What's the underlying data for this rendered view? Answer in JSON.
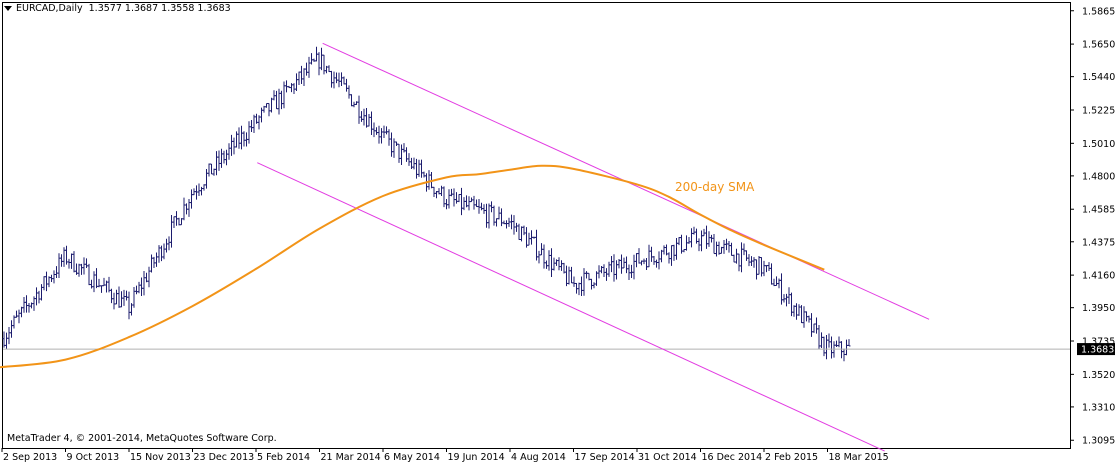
{
  "header": {
    "symbol_timeframe": "EURCAD,Daily",
    "ohlc": "1.3577 1.3687 1.3558 1.3683"
  },
  "footer": {
    "copyright": "MetaTrader 4, © 2001-2014, MetaQuotes Software Corp."
  },
  "annotation": {
    "sma_label": "200-day SMA"
  },
  "colors": {
    "background": "#ffffff",
    "frame": "#000000",
    "bars": "#1c1c6e",
    "sma": "#f29418",
    "channel": "#e23ce2",
    "price_line": "#b0b0b0",
    "price_tag_bg": "#000000",
    "price_tag_fg": "#ffffff"
  },
  "chart_data": {
    "type": "ohlc",
    "title": "EURCAD,Daily",
    "x_ticks": [
      "2 Sep 2013",
      "9 Oct 2013",
      "15 Nov 2013",
      "23 Dec 2013",
      "5 Feb 2014",
      "21 Mar 2014",
      "6 May 2014",
      "19 Jun 2014",
      "4 Aug 2014",
      "17 Sep 2014",
      "31 Oct 2014",
      "16 Dec 2014",
      "2 Feb 2015",
      "18 Mar 2015"
    ],
    "y_ticks": [
      1.5865,
      1.565,
      1.544,
      1.5225,
      1.501,
      1.48,
      1.4585,
      1.4375,
      1.416,
      1.395,
      1.3735,
      1.352,
      1.331,
      1.3095
    ],
    "ylim": [
      1.3045,
      1.5915
    ],
    "current_price": 1.3683,
    "price_path": {
      "x_ticks": [
        0,
        1,
        2,
        3,
        4,
        5,
        6,
        7,
        8,
        9,
        10,
        11,
        12,
        13,
        13.36
      ],
      "close": [
        1.375,
        1.428,
        1.395,
        1.47,
        1.515,
        1.555,
        1.505,
        1.465,
        1.45,
        1.41,
        1.425,
        1.44,
        1.42,
        1.368,
        1.3683
      ]
    },
    "sma_200": {
      "name": "200-day SMA",
      "x_ticks": [
        -0.05,
        1.0,
        2.0,
        3.0,
        4.0,
        5.0,
        6.0,
        7.0,
        7.5,
        8.0,
        8.5,
        9.0,
        10.0,
        10.5,
        11.0,
        11.5,
        12.0,
        12.5,
        12.95
      ],
      "values": [
        1.3565,
        1.3615,
        1.376,
        1.396,
        1.42,
        1.446,
        1.467,
        1.479,
        1.481,
        1.484,
        1.4865,
        1.4845,
        1.4745,
        1.4665,
        1.455,
        1.4445,
        1.4355,
        1.427,
        1.4195
      ]
    },
    "channel_lines": [
      {
        "x_ticks": [
          4.02,
          13.9
        ],
        "values": [
          1.4885,
          1.3025
        ]
      },
      {
        "x_ticks": [
          5.05,
          14.6
        ],
        "values": [
          1.5655,
          1.3875
        ]
      }
    ]
  }
}
